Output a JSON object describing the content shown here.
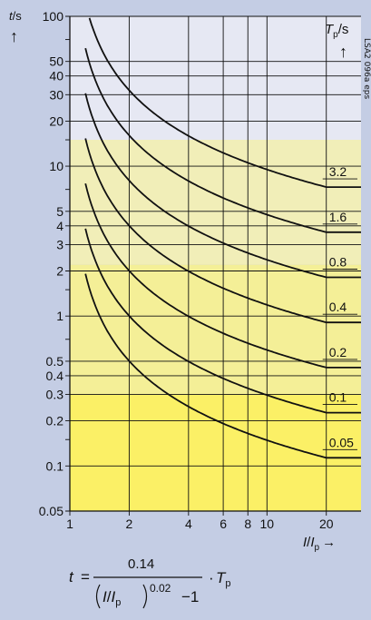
{
  "chart_data": {
    "type": "line",
    "title": "",
    "xlabel": {
      "var": "I",
      "sep": "/",
      "var2": "I",
      "sub2": "p",
      "arrow": "→"
    },
    "ylabel": {
      "var": "t",
      "unit": "/s",
      "arrow": "↑"
    },
    "param_label": {
      "var": "T",
      "sub": "p",
      "unit": "/s",
      "arrow": "↑"
    },
    "xscale": "log",
    "yscale": "log",
    "xlim": [
      1,
      30
    ],
    "ylim": [
      0.05,
      100
    ],
    "x_ticks": [
      1,
      2,
      4,
      6,
      8,
      10,
      20
    ],
    "x_tick_labels": [
      "1",
      "2",
      "4",
      "6",
      "8",
      "10",
      "20"
    ],
    "y_ticks": [
      0.05,
      0.1,
      0.2,
      0.3,
      0.4,
      0.5,
      1,
      2,
      3,
      4,
      5,
      10,
      20,
      30,
      40,
      50,
      100
    ],
    "y_tick_labels": [
      "0.05",
      "0.1",
      "0.2",
      "0.3",
      "0.4",
      "0.5",
      "1",
      "2",
      "3",
      "4",
      "5",
      "10",
      "20",
      "30",
      "40",
      "50",
      "100"
    ],
    "y_minor_ticks": [
      0.15,
      0.7,
      1.5,
      7,
      15,
      70
    ],
    "grid": true,
    "curve_x_range": [
      1.2,
      20
    ],
    "curve_x_end": 30,
    "series": [
      {
        "name": "3.2",
        "Tp": 3.2
      },
      {
        "name": "1.6",
        "Tp": 1.6
      },
      {
        "name": "0.8",
        "Tp": 0.8
      },
      {
        "name": "0.4",
        "Tp": 0.4
      },
      {
        "name": "0.2",
        "Tp": 0.2
      },
      {
        "name": "0.1",
        "Tp": 0.1
      },
      {
        "name": "0.05",
        "Tp": 0.05
      }
    ],
    "bands": [
      {
        "from": 15,
        "to": 100,
        "color": "#e6e8f3"
      },
      {
        "from": 2.2,
        "to": 15,
        "color": "#f1eeb8"
      },
      {
        "from": 0.3,
        "to": 2.2,
        "color": "#f4ef97"
      },
      {
        "from": 0.05,
        "to": 0.3,
        "color": "#fbf066"
      }
    ],
    "colors": {
      "background": "#c4cde4",
      "curve": "#111111",
      "grid": "#111111"
    }
  },
  "formula": {
    "lhs": "t",
    "eq": "=",
    "numerator": "0.14",
    "den_var": "I",
    "den_sep": "/",
    "den_var2": "I",
    "den_sub": "p",
    "den_exp": "0.02",
    "den_minus": "−1",
    "dot": "·",
    "mult_var": "T",
    "mult_sub": "p"
  },
  "side_id": "LSA2 096a eps"
}
